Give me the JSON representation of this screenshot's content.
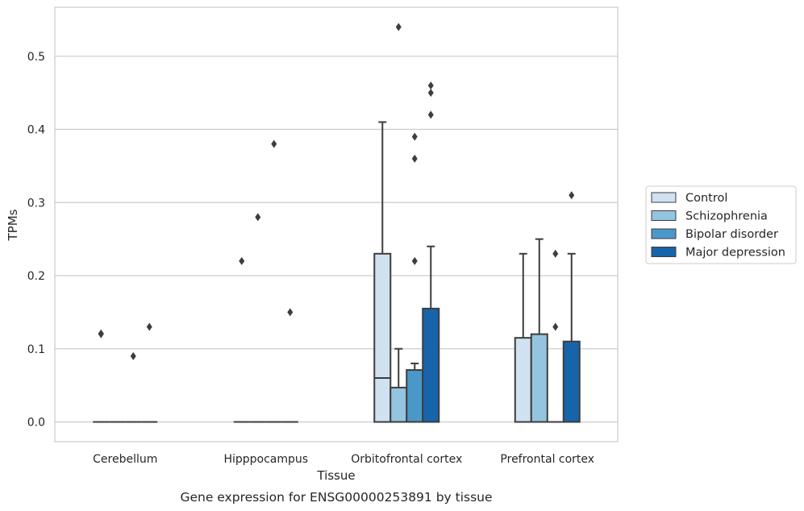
{
  "chart_data": {
    "type": "box",
    "xlabel": "Tissue",
    "ylabel": "TPMs",
    "caption": "Gene expression for ENSG00000253891 by tissue",
    "ylim": [
      -0.027,
      0.567
    ],
    "yticks": [
      0.0,
      0.1,
      0.2,
      0.3,
      0.4,
      0.5
    ],
    "ytick_labels": [
      "0.0",
      "0.1",
      "0.2",
      "0.3",
      "0.4",
      "0.5"
    ],
    "grid": true,
    "legend_position": "right",
    "categories": [
      "Cerebellum",
      "Hipppocampus",
      "Orbitofrontal cortex",
      "Prefrontal cortex"
    ],
    "series": [
      {
        "name": "Control",
        "color": "#d0e1f2",
        "boxes": [
          {
            "q1": 0.0,
            "median": 0.0,
            "q3": 0.0,
            "whisker_low": 0.0,
            "whisker_high": 0.0,
            "outliers": [
              0.12,
              0.121
            ]
          },
          {
            "q1": 0.0,
            "median": 0.0,
            "q3": 0.0,
            "whisker_low": 0.0,
            "whisker_high": 0.0,
            "outliers": [
              0.22
            ]
          },
          {
            "q1": 0.0,
            "median": 0.06,
            "q3": 0.23,
            "whisker_low": 0.0,
            "whisker_high": 0.41,
            "outliers": []
          },
          {
            "q1": 0.0,
            "median": 0.0,
            "q3": 0.115,
            "whisker_low": 0.0,
            "whisker_high": 0.23,
            "outliers": []
          }
        ]
      },
      {
        "name": "Schizophrenia",
        "color": "#94c4df",
        "boxes": [
          {
            "q1": 0.0,
            "median": 0.0,
            "q3": 0.0,
            "whisker_low": 0.0,
            "whisker_high": 0.0,
            "outliers": []
          },
          {
            "q1": 0.0,
            "median": 0.0,
            "q3": 0.0,
            "whisker_low": 0.0,
            "whisker_high": 0.0,
            "outliers": [
              0.28
            ]
          },
          {
            "q1": 0.0,
            "median": 0.0,
            "q3": 0.047,
            "whisker_low": 0.0,
            "whisker_high": 0.1,
            "outliers": [
              0.54
            ]
          },
          {
            "q1": 0.0,
            "median": 0.0,
            "q3": 0.12,
            "whisker_low": 0.0,
            "whisker_high": 0.25,
            "outliers": []
          }
        ]
      },
      {
        "name": "Bipolar disorder",
        "color": "#4a98c9",
        "boxes": [
          {
            "q1": 0.0,
            "median": 0.0,
            "q3": 0.0,
            "whisker_low": 0.0,
            "whisker_high": 0.0,
            "outliers": [
              0.09
            ]
          },
          {
            "q1": 0.0,
            "median": 0.0,
            "q3": 0.0,
            "whisker_low": 0.0,
            "whisker_high": 0.0,
            "outliers": [
              0.38
            ]
          },
          {
            "q1": 0.0,
            "median": 0.0,
            "q3": 0.071,
            "whisker_low": 0.0,
            "whisker_high": 0.08,
            "outliers": [
              0.22,
              0.36,
              0.39
            ]
          },
          {
            "q1": 0.0,
            "median": 0.0,
            "q3": 0.0,
            "whisker_low": 0.0,
            "whisker_high": 0.0,
            "outliers": [
              0.13,
              0.23
            ]
          }
        ]
      },
      {
        "name": "Major depression",
        "color": "#1764ab",
        "boxes": [
          {
            "q1": 0.0,
            "median": 0.0,
            "q3": 0.0,
            "whisker_low": 0.0,
            "whisker_high": 0.0,
            "outliers": [
              0.13
            ]
          },
          {
            "q1": 0.0,
            "median": 0.0,
            "q3": 0.0,
            "whisker_low": 0.0,
            "whisker_high": 0.0,
            "outliers": [
              0.15
            ]
          },
          {
            "q1": 0.0,
            "median": 0.0,
            "q3": 0.155,
            "whisker_low": 0.0,
            "whisker_high": 0.24,
            "outliers": [
              0.42,
              0.45,
              0.46
            ]
          },
          {
            "q1": 0.0,
            "median": 0.0,
            "q3": 0.11,
            "whisker_low": 0.0,
            "whisker_high": 0.23,
            "outliers": [
              0.31
            ]
          }
        ]
      }
    ]
  }
}
